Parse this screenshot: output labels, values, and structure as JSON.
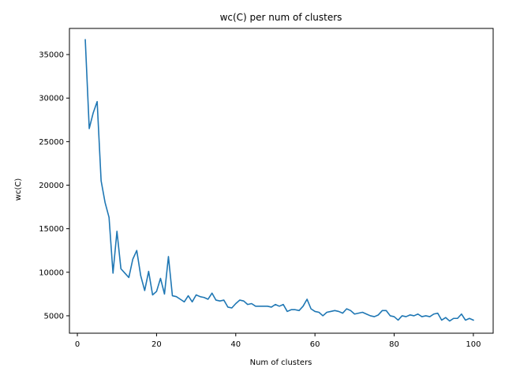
{
  "chart_data": {
    "type": "line",
    "title": "wc(C) per num of clusters",
    "xlabel": "Num of clusters",
    "ylabel": "wc(C)",
    "xlim": [
      -2,
      105
    ],
    "ylim": [
      3000,
      38000
    ],
    "xticks": [
      0,
      20,
      40,
      60,
      80,
      100
    ],
    "yticks": [
      5000,
      10000,
      15000,
      20000,
      25000,
      30000,
      35000
    ],
    "grid": false,
    "series": [
      {
        "color": "#1f77b4",
        "x": [
          2,
          3,
          4,
          5,
          6,
          7,
          8,
          9,
          10,
          11,
          12,
          13,
          14,
          15,
          16,
          17,
          18,
          19,
          20,
          21,
          22,
          23,
          24,
          25,
          26,
          27,
          28,
          29,
          30,
          31,
          32,
          33,
          34,
          35,
          36,
          37,
          38,
          39,
          40,
          41,
          42,
          43,
          44,
          45,
          46,
          47,
          48,
          49,
          50,
          51,
          52,
          53,
          54,
          55,
          56,
          57,
          58,
          59,
          60,
          61,
          62,
          63,
          64,
          65,
          66,
          67,
          68,
          69,
          70,
          71,
          72,
          73,
          74,
          75,
          76,
          77,
          78,
          79,
          80,
          81,
          82,
          83,
          84,
          85,
          86,
          87,
          88,
          89,
          90,
          91,
          92,
          93,
          94,
          95,
          96,
          97,
          98,
          99,
          100
        ],
        "y": [
          36700,
          26500,
          28300,
          29600,
          20500,
          18000,
          16300,
          9900,
          14700,
          10400,
          9900,
          9400,
          11500,
          12500,
          9600,
          7900,
          10100,
          7400,
          7800,
          9300,
          7500,
          11800,
          7300,
          7200,
          6900,
          6600,
          7300,
          6600,
          7400,
          7200,
          7100,
          6900,
          7600,
          6800,
          6700,
          6800,
          6000,
          5900,
          6400,
          6800,
          6700,
          6300,
          6400,
          6100,
          6100,
          6100,
          6100,
          6000,
          6300,
          6100,
          6300,
          5500,
          5700,
          5700,
          5600,
          6100,
          6900,
          5800,
          5500,
          5400,
          5000,
          5400,
          5500,
          5600,
          5500,
          5300,
          5800,
          5600,
          5200,
          5300,
          5400,
          5200,
          5000,
          4900,
          5100,
          5600,
          5600,
          5000,
          4900,
          4500,
          5000,
          4900,
          5100,
          5000,
          5200,
          4900,
          5000,
          4900,
          5200,
          5300,
          4500,
          4800,
          4400,
          4700,
          4700,
          5200,
          4500,
          4700,
          4500
        ]
      }
    ]
  }
}
